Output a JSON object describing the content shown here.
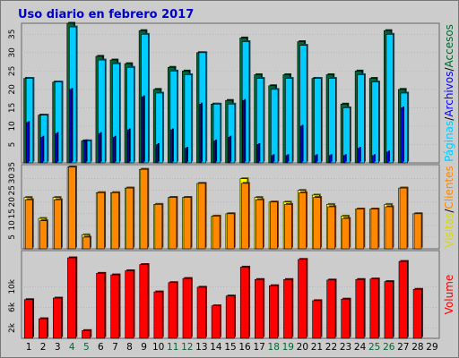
{
  "chart_data": {
    "type": "bar",
    "title": "Uso diario en febrero 2017",
    "days": [
      "1",
      "2",
      "3",
      "4",
      "5",
      "6",
      "7",
      "8",
      "9",
      "10",
      "11",
      "12",
      "13",
      "14",
      "15",
      "16",
      "17",
      "18",
      "19",
      "20",
      "21",
      "22",
      "23",
      "24",
      "25",
      "26",
      "27",
      "28",
      "29"
    ],
    "weekend_days": [
      "4",
      "5",
      "11",
      "12",
      "18",
      "19",
      "25",
      "26"
    ],
    "colors": {
      "accesos": "#006633",
      "archivos": "#0000ff",
      "paginas": "#00ccff",
      "visitas": "#ffff00",
      "clientes": "#ff8800",
      "volumen": "#ff0000",
      "weekend_label": "#006633"
    },
    "top_panel": {
      "ylim": [
        0,
        38
      ],
      "yticks": [
        "5",
        "10",
        "15",
        "20",
        "25",
        "30",
        "35"
      ],
      "right_labels": {
        "paginas": "Páginas",
        "sep1": "/",
        "archivos": "Archivos",
        "sep2": "/",
        "accesos": "Accesos"
      },
      "series": [
        {
          "key": "accesos",
          "values": [
            23,
            13,
            22,
            38,
            6,
            29,
            28,
            27,
            36,
            20,
            26,
            25,
            30,
            16,
            17,
            34,
            24,
            21,
            24,
            33,
            23,
            24,
            16,
            25,
            23,
            36,
            20,
            null,
            null
          ]
        },
        {
          "key": "paginas",
          "values": [
            23,
            13,
            22,
            37,
            6,
            28,
            27,
            26,
            35,
            19,
            25,
            24,
            30,
            16,
            16,
            33,
            23,
            20,
            23,
            32,
            23,
            23,
            15,
            24,
            22,
            35,
            19,
            null,
            null
          ]
        },
        {
          "key": "archivos",
          "values": [
            11,
            7,
            8,
            20,
            6,
            8,
            7,
            9,
            18,
            5,
            9,
            4,
            16,
            6,
            7,
            17,
            5,
            2,
            2,
            10,
            2,
            2,
            2,
            4,
            2,
            3,
            15,
            null,
            null
          ]
        }
      ]
    },
    "middle_panel": {
      "ylim": [
        0,
        36
      ],
      "yticks": [
        "5",
        "10",
        "15",
        "20",
        "25",
        "30",
        "35"
      ],
      "right_labels": {
        "visitas": "Visitas",
        "sep": "/",
        "clientes": "Clientes"
      },
      "series": [
        {
          "key": "visitas",
          "values": [
            22,
            13,
            22,
            35,
            6,
            24,
            24,
            26,
            34,
            19,
            22,
            22,
            28,
            14,
            15,
            30,
            22,
            20,
            20,
            25,
            23,
            19,
            14,
            17,
            17,
            19,
            26,
            15,
            null
          ]
        },
        {
          "key": "clientes",
          "values": [
            21,
            12,
            21,
            35,
            5,
            24,
            24,
            26,
            34,
            19,
            22,
            22,
            28,
            14,
            15,
            28,
            21,
            20,
            19,
            24,
            22,
            18,
            13,
            17,
            17,
            18,
            26,
            15,
            null
          ]
        }
      ]
    },
    "bottom_panel": {
      "ylim": [
        0,
        17
      ],
      "yticks": [
        "2k",
        "6k",
        "10k"
      ],
      "right_labels": {
        "volumen": "Volume"
      },
      "series": [
        {
          "key": "volumen",
          "values": [
            7.5,
            3.8,
            7.8,
            15.6,
            1.5,
            12.6,
            12.3,
            13.1,
            14.3,
            9.0,
            10.8,
            11.6,
            9.9,
            6.3,
            8.2,
            13.8,
            11.4,
            10.2,
            11.4,
            15.3,
            7.3,
            11.3,
            7.6,
            11.4,
            11.5,
            11.0,
            14.9,
            9.5,
            null
          ]
        }
      ]
    }
  }
}
